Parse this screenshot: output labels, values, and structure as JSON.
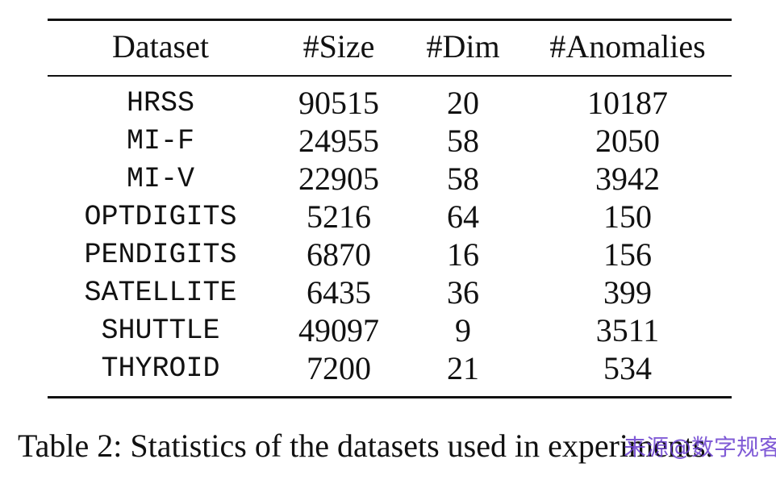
{
  "table": {
    "headers": [
      "Dataset",
      "#Size",
      "#Dim",
      "#Anomalies"
    ],
    "rows": [
      [
        "HRSS",
        "90515",
        "20",
        "10187"
      ],
      [
        "MI-F",
        "24955",
        "58",
        "2050"
      ],
      [
        "MI-V",
        "22905",
        "58",
        "3942"
      ],
      [
        "OPTDIGITS",
        "5216",
        "64",
        "150"
      ],
      [
        "PENDIGITS",
        "6870",
        "16",
        "156"
      ],
      [
        "SATELLITE",
        "6435",
        "36",
        "399"
      ],
      [
        "SHUTTLE",
        "49097",
        "9",
        "3511"
      ],
      [
        "THYROID",
        "7200",
        "21",
        "534"
      ]
    ]
  },
  "caption": "Table 2: Statistics of the datasets used in experiments.",
  "watermark": "来源@数字规客"
}
